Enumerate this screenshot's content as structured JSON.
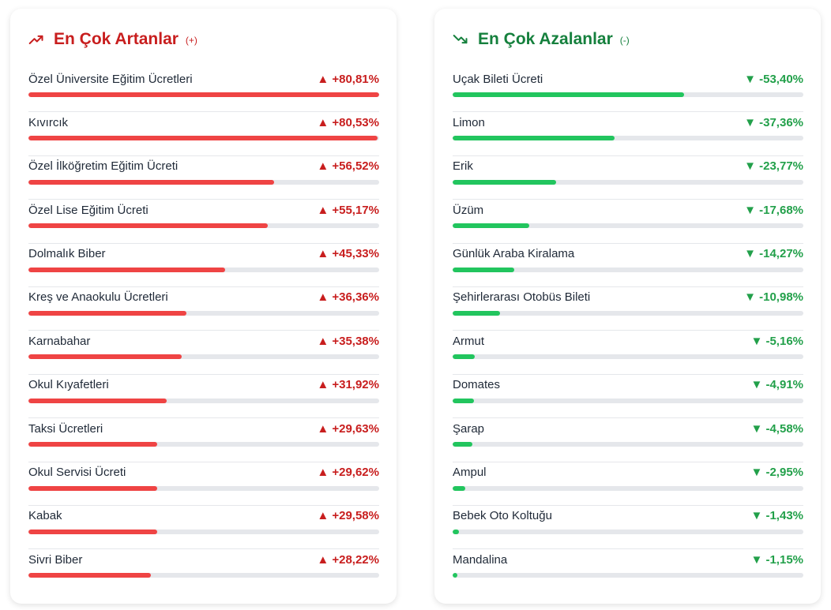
{
  "increasing": {
    "title": "En Çok Artanlar",
    "sign": "(+)",
    "icon": "trending-up-icon",
    "items": [
      {
        "name": "Özel Üniversite Eğitim Ücretleri",
        "change": "▲ +80,81%",
        "value": 80.81
      },
      {
        "name": "Kıvırcık",
        "change": "▲ +80,53%",
        "value": 80.53
      },
      {
        "name": "Özel İlköğretim Eğitim Ücreti",
        "change": "▲ +56,52%",
        "value": 56.52
      },
      {
        "name": "Özel Lise Eğitim Ücreti",
        "change": "▲ +55,17%",
        "value": 55.17
      },
      {
        "name": "Dolmalık Biber",
        "change": "▲ +45,33%",
        "value": 45.33
      },
      {
        "name": "Kreş ve Anaokulu Ücretleri",
        "change": "▲ +36,36%",
        "value": 36.36
      },
      {
        "name": "Karnabahar",
        "change": "▲ +35,38%",
        "value": 35.38
      },
      {
        "name": "Okul Kıyafetleri",
        "change": "▲ +31,92%",
        "value": 31.92
      },
      {
        "name": "Taksi Ücretleri",
        "change": "▲ +29,63%",
        "value": 29.63
      },
      {
        "name": "Okul Servisi Ücreti",
        "change": "▲ +29,62%",
        "value": 29.62
      },
      {
        "name": "Kabak",
        "change": "▲ +29,58%",
        "value": 29.58
      },
      {
        "name": "Sivri Biber",
        "change": "▲ +28,22%",
        "value": 28.22
      }
    ]
  },
  "decreasing": {
    "title": "En Çok Azalanlar",
    "sign": "(-)",
    "icon": "trending-down-icon",
    "items": [
      {
        "name": "Uçak Bileti Ücreti",
        "change": "▼ -53,40%",
        "value": 53.4
      },
      {
        "name": "Limon",
        "change": "▼ -37,36%",
        "value": 37.36
      },
      {
        "name": "Erik",
        "change": "▼ -23,77%",
        "value": 23.77
      },
      {
        "name": "Üzüm",
        "change": "▼ -17,68%",
        "value": 17.68
      },
      {
        "name": "Günlük Araba Kiralama",
        "change": "▼ -14,27%",
        "value": 14.27
      },
      {
        "name": "Şehirlerarası Otobüs Bileti",
        "change": "▼ -10,98%",
        "value": 10.98
      },
      {
        "name": "Armut",
        "change": "▼ -5,16%",
        "value": 5.16
      },
      {
        "name": "Domates",
        "change": "▼ -4,91%",
        "value": 4.91
      },
      {
        "name": "Şarap",
        "change": "▼ -4,58%",
        "value": 4.58
      },
      {
        "name": "Ampul",
        "change": "▼ -2,95%",
        "value": 2.95
      },
      {
        "name": "Bebek Oto Koltuğu",
        "change": "▼ -1,43%",
        "value": 1.43
      },
      {
        "name": "Mandalina",
        "change": "▼ -1,15%",
        "value": 1.15
      }
    ]
  },
  "scale_max": 80.81
}
